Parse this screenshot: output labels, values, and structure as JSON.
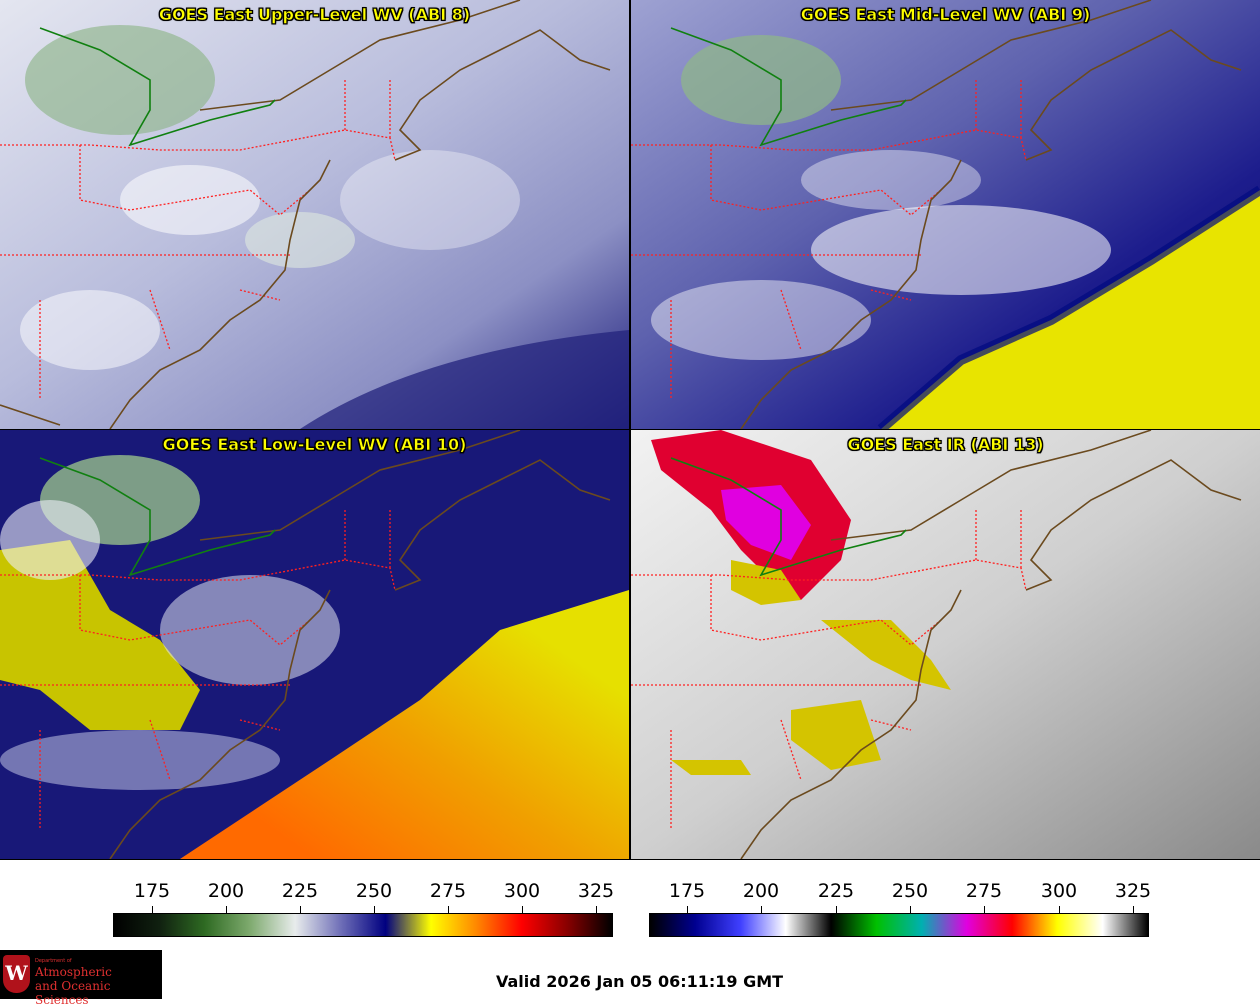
{
  "panels": [
    {
      "title": "GOES East Upper-Level WV (ABI 8)",
      "scheme": "wv_upper"
    },
    {
      "title": "GOES East Mid-Level WV (ABI 9)",
      "scheme": "wv_mid"
    },
    {
      "title": "GOES East Low-Level WV (ABI 10)",
      "scheme": "wv_low"
    },
    {
      "title": "GOES East IR (ABI 13)",
      "scheme": "ir"
    }
  ],
  "colorbars": [
    {
      "name": "wv-colorbar",
      "ticks": [
        "175",
        "200",
        "225",
        "250",
        "275",
        "300",
        "325"
      ],
      "stops": [
        "#000000",
        "#102010",
        "#2e6a22",
        "#7eaa6e",
        "#e8ecec",
        "#7070b8",
        "#000080",
        "#ffff00",
        "#ff8800",
        "#ff0000",
        "#8a0000",
        "#000000"
      ]
    },
    {
      "name": "ir-colorbar",
      "ticks": [
        "175",
        "200",
        "225",
        "250",
        "275",
        "300",
        "325"
      ],
      "stops": [
        "#000000",
        "#000090",
        "#4040ff",
        "#ffffff",
        "#000000",
        "#00c000",
        "#00b0b0",
        "#e000e0",
        "#ff0000",
        "#ffff00",
        "#ffffff",
        "#000000"
      ]
    }
  ],
  "valid_time": "Valid 2026 Jan 05 06:11:19 GMT",
  "logo": {
    "line0": "Department of",
    "line1": "Atmospheric",
    "line2": "and Oceanic Sciences",
    "shield_letter": "W"
  },
  "colors": {
    "title_text": "#ffff00",
    "state_borders": "#ff2020",
    "coastlines": "#6b4a1e",
    "lake_outline": "#108010"
  }
}
